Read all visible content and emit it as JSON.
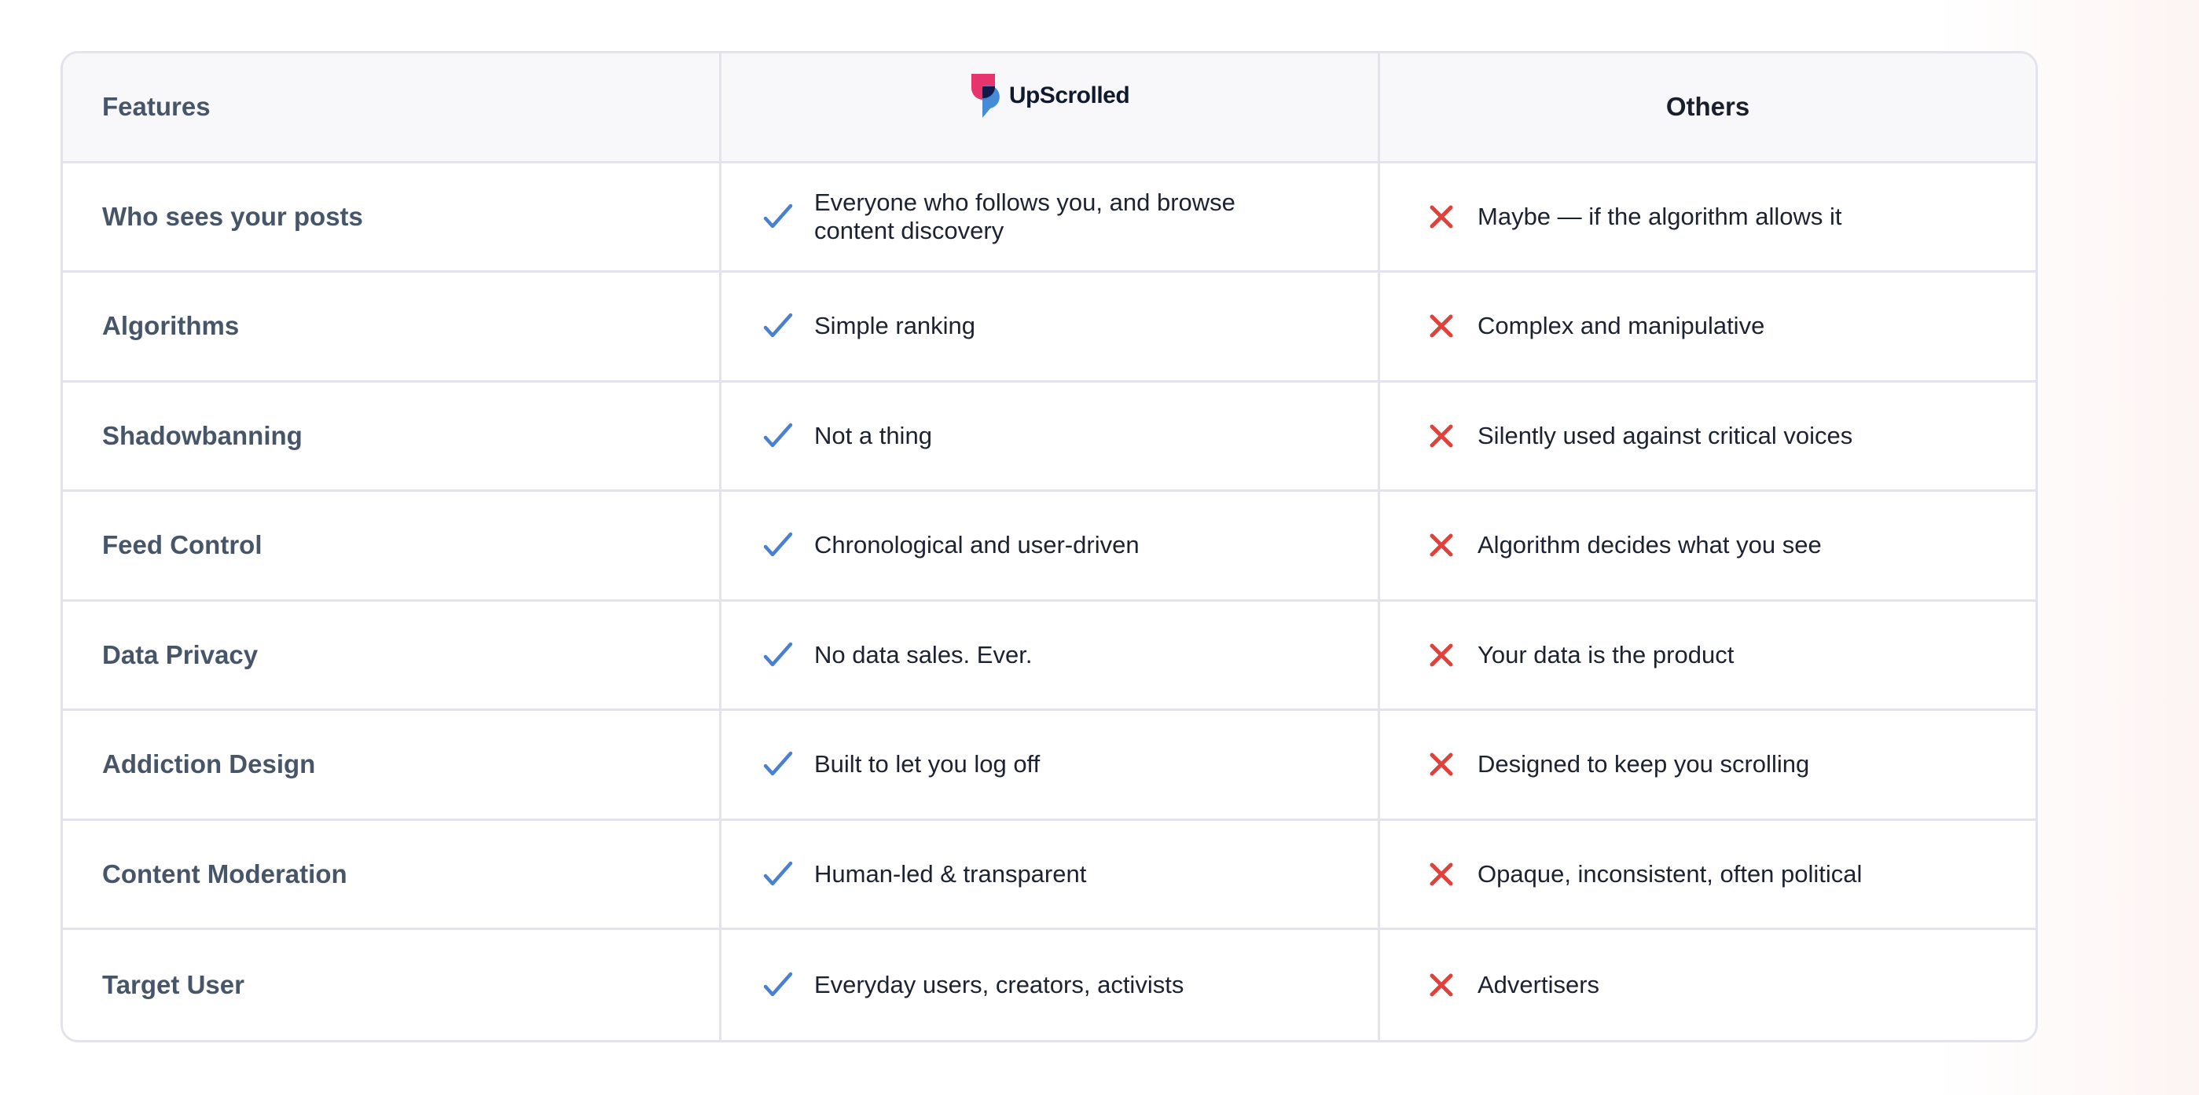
{
  "header": {
    "features_label": "Features",
    "brand_name": "UpScrolled",
    "others_label": "Others"
  },
  "colors": {
    "check": "#4a80d2",
    "cross": "#e0413b",
    "brand_pink": "#e8346c",
    "brand_blue": "#3b86d4",
    "brand_navy": "#0d1a4a"
  },
  "rows": [
    {
      "feature": "Who sees your posts",
      "upscrolled": "Everyone who follows you, and browse content discovery",
      "others": "Maybe — if the algorithm allows it"
    },
    {
      "feature": "Algorithms",
      "upscrolled": "Simple ranking",
      "others": "Complex and manipulative"
    },
    {
      "feature": "Shadowbanning",
      "upscrolled": "Not a thing",
      "others": "Silently used against critical voices"
    },
    {
      "feature": "Feed Control",
      "upscrolled": "Chronological and user-driven",
      "others": "Algorithm decides what you see"
    },
    {
      "feature": "Data Privacy",
      "upscrolled": "No data sales. Ever.",
      "others": "Your data is the product"
    },
    {
      "feature": "Addiction Design",
      "upscrolled": "Built to let you log off",
      "others": "Designed to keep you scrolling"
    },
    {
      "feature": "Content Moderation",
      "upscrolled": "Human-led & transparent",
      "others": "Opaque, inconsistent, often political"
    },
    {
      "feature": "Target User",
      "upscrolled": "Everyday users, creators, activists",
      "others": "Advertisers"
    }
  ]
}
